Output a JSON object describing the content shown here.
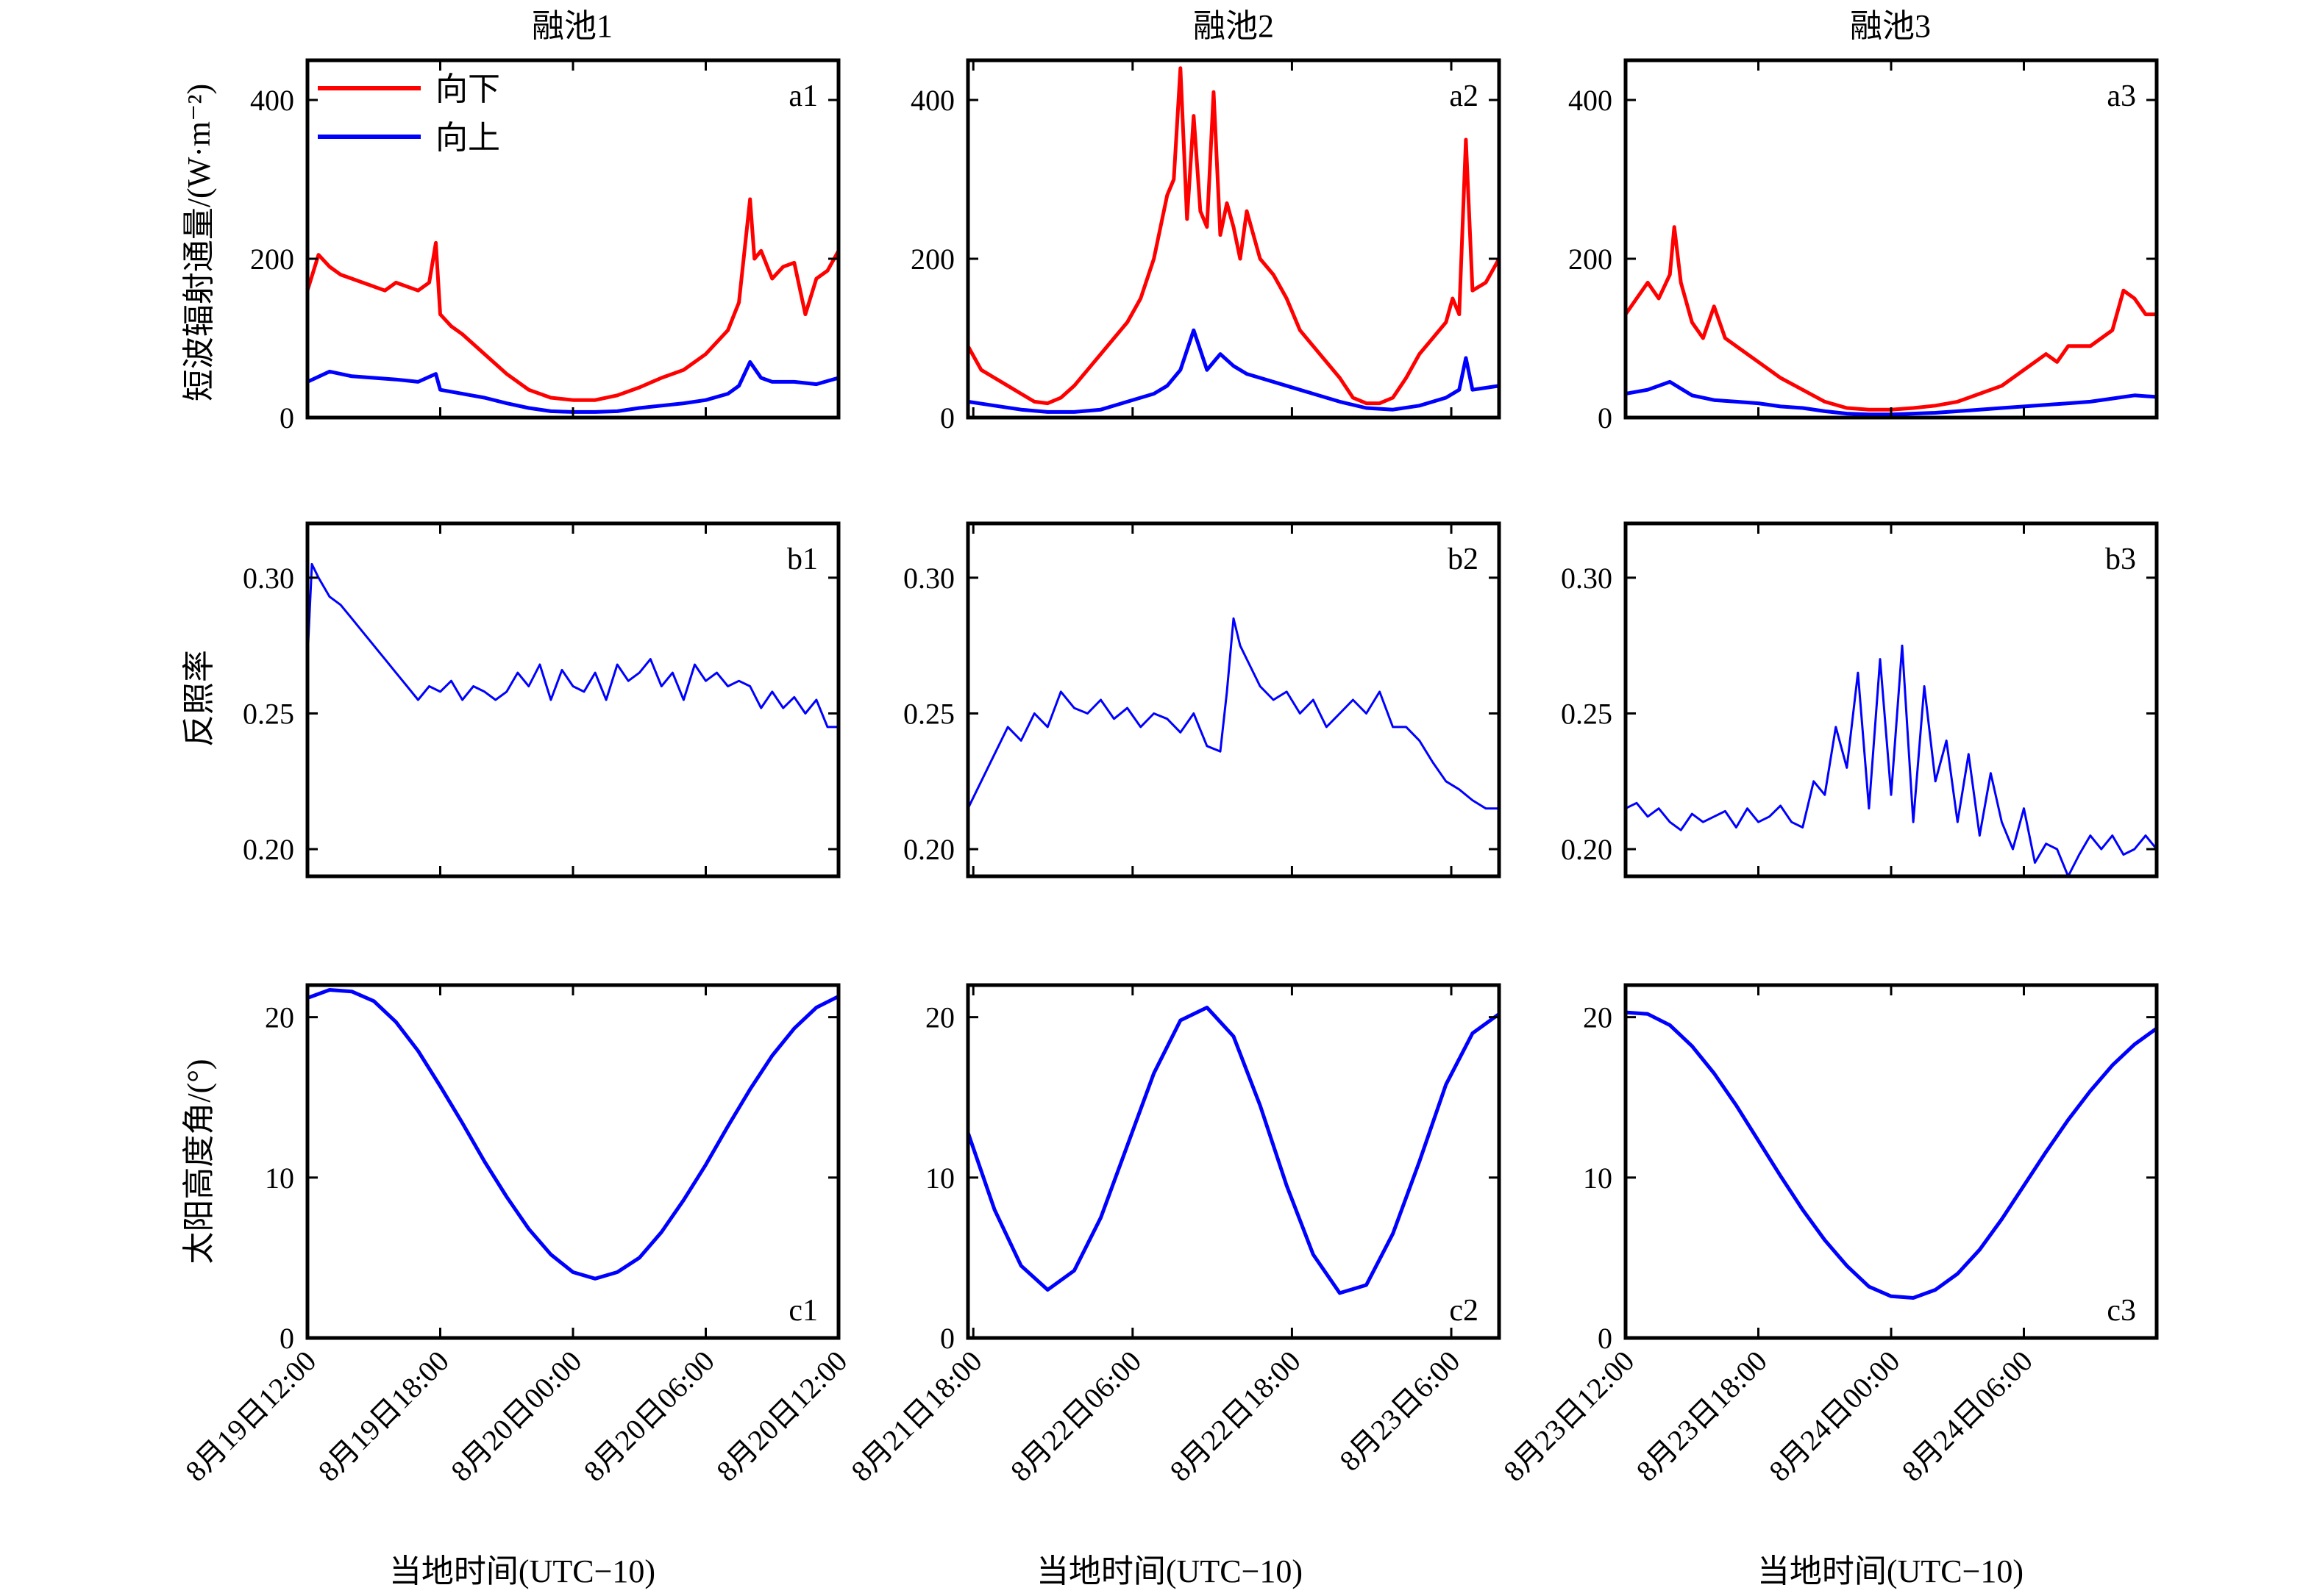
{
  "figure": {
    "xlabel": "当地时间(UTC−10)"
  },
  "columns": [
    {
      "title": "融池1",
      "xticks": [
        "8月19日12:00",
        "8月19日18:00",
        "8月20日00:00",
        "8月20日06:00",
        "8月20日12:00"
      ]
    },
    {
      "title": "融池2",
      "xticks": [
        "8月21日18:00",
        "8月22日06:00",
        "8月22日18:00",
        "8月23日6:00"
      ]
    },
    {
      "title": "融池3",
      "xticks": [
        "8月23日12:00",
        "8月23日18:00",
        "8月24日00:00",
        "8月24日06:00"
      ]
    }
  ],
  "rows": [
    {
      "ylabel": "短波辐射通量/(W·m⁻²)"
    },
    {
      "ylabel": "反照率"
    },
    {
      "ylabel": "太阳高度角/(°)"
    }
  ],
  "colors": {
    "down": "#ff0000",
    "up": "#0000ff",
    "axis": "#000000"
  },
  "legend": {
    "down": "向下",
    "up": "向上",
    "placement": "top-left"
  },
  "chart_data": [
    {
      "id": "a1",
      "type": "line",
      "panel_label": "a1",
      "column": 1,
      "x_unit": "hours since 8月19日12:00",
      "xlim": [
        0,
        24
      ],
      "ylim": [
        0,
        450
      ],
      "yticks": [
        0,
        200,
        400
      ],
      "series": [
        {
          "name": "向下",
          "color": "#ff0000",
          "x": [
            0,
            0.5,
            1,
            1.5,
            2,
            2.5,
            3,
            3.5,
            4,
            4.5,
            5,
            5.5,
            5.8,
            6,
            6.5,
            7,
            8,
            9,
            10,
            11,
            12,
            13,
            14,
            15,
            16,
            17,
            18,
            19,
            19.5,
            20,
            20.2,
            20.5,
            21,
            21.5,
            22,
            22.5,
            23,
            23.5,
            24
          ],
          "y": [
            160,
            205,
            190,
            180,
            175,
            170,
            165,
            160,
            170,
            165,
            160,
            170,
            220,
            130,
            115,
            105,
            80,
            55,
            35,
            25,
            22,
            22,
            28,
            38,
            50,
            60,
            80,
            110,
            145,
            275,
            200,
            210,
            175,
            190,
            195,
            130,
            175,
            185,
            210
          ]
        },
        {
          "name": "向上",
          "color": "#0000ff",
          "x": [
            0,
            1,
            2,
            3,
            4,
            5,
            5.8,
            6,
            7,
            8,
            9,
            10,
            11,
            12,
            13,
            14,
            15,
            16,
            17,
            18,
            19,
            19.5,
            20,
            20.5,
            21,
            22,
            23,
            24
          ],
          "y": [
            45,
            58,
            52,
            50,
            48,
            45,
            55,
            35,
            30,
            25,
            18,
            12,
            8,
            7,
            7,
            8,
            12,
            15,
            18,
            22,
            30,
            40,
            70,
            50,
            45,
            45,
            42,
            50
          ]
        }
      ]
    },
    {
      "id": "a2",
      "type": "line",
      "panel_label": "a2",
      "column": 2,
      "x_unit": "hours since 8月21日18:00",
      "xlim": [
        0,
        40
      ],
      "ylim": [
        0,
        450
      ],
      "yticks": [
        0,
        200,
        400
      ],
      "series": [
        {
          "name": "向下",
          "color": "#ff0000",
          "x": [
            0,
            1,
            2,
            3,
            4,
            5,
            6,
            7,
            8,
            9,
            10,
            11,
            12,
            13,
            14,
            15,
            15.5,
            16,
            16.5,
            17,
            17.5,
            18,
            18.5,
            19,
            19.5,
            20,
            20.5,
            21,
            22,
            23,
            24,
            25,
            26,
            27,
            28,
            29,
            30,
            31,
            32,
            33,
            34,
            35,
            36,
            36.5,
            37,
            37.5,
            38,
            39,
            40
          ],
          "y": [
            90,
            60,
            50,
            40,
            30,
            20,
            18,
            25,
            40,
            60,
            80,
            100,
            120,
            150,
            200,
            280,
            300,
            440,
            250,
            380,
            260,
            240,
            410,
            230,
            270,
            240,
            200,
            260,
            200,
            180,
            150,
            110,
            90,
            70,
            50,
            25,
            18,
            18,
            25,
            50,
            80,
            100,
            120,
            150,
            130,
            350,
            160,
            170,
            200
          ]
        },
        {
          "name": "向上",
          "color": "#0000ff",
          "x": [
            0,
            2,
            4,
            6,
            8,
            10,
            12,
            14,
            15,
            16,
            17,
            18,
            19,
            20,
            21,
            22,
            24,
            26,
            28,
            30,
            32,
            34,
            36,
            37,
            37.5,
            38,
            40
          ],
          "y": [
            20,
            15,
            10,
            7,
            7,
            10,
            20,
            30,
            40,
            60,
            110,
            60,
            80,
            65,
            55,
            50,
            40,
            30,
            20,
            12,
            10,
            15,
            25,
            35,
            75,
            35,
            40
          ]
        }
      ]
    },
    {
      "id": "a3",
      "type": "line",
      "panel_label": "a3",
      "column": 3,
      "x_unit": "hours since 8月23日12:00",
      "xlim": [
        0,
        24
      ],
      "ylim": [
        0,
        450
      ],
      "yticks": [
        0,
        200,
        400
      ],
      "series": [
        {
          "name": "向下",
          "color": "#ff0000",
          "x": [
            0,
            0.5,
            1,
            1.5,
            2,
            2.2,
            2.5,
            3,
            3.5,
            4,
            4.5,
            5,
            6,
            7,
            8,
            9,
            10,
            11,
            12,
            13,
            14,
            15,
            16,
            17,
            18,
            19,
            19.5,
            20,
            21,
            22,
            22.5,
            23,
            23.5,
            24
          ],
          "y": [
            130,
            150,
            170,
            150,
            180,
            240,
            170,
            120,
            100,
            140,
            100,
            90,
            70,
            50,
            35,
            20,
            12,
            10,
            10,
            12,
            15,
            20,
            30,
            40,
            60,
            80,
            70,
            90,
            90,
            110,
            160,
            150,
            130,
            130
          ]
        },
        {
          "name": "向上",
          "color": "#0000ff",
          "x": [
            0,
            1,
            2,
            3,
            4,
            5,
            6,
            7,
            8,
            9,
            10,
            11,
            12,
            13,
            14,
            15,
            16,
            17,
            18,
            19,
            20,
            21,
            22,
            23,
            24
          ],
          "y": [
            30,
            35,
            45,
            28,
            22,
            20,
            18,
            14,
            12,
            8,
            5,
            4,
            4,
            5,
            6,
            8,
            10,
            12,
            14,
            16,
            18,
            20,
            24,
            28,
            26
          ]
        }
      ]
    },
    {
      "id": "b1",
      "type": "line",
      "panel_label": "b1",
      "column": 1,
      "x_unit": "hours since 8月19日12:00",
      "xlim": [
        0,
        24
      ],
      "ylim": [
        0.19,
        0.32
      ],
      "yticks": [
        0.2,
        0.25,
        0.3
      ],
      "series": [
        {
          "color": "#0000ff",
          "x": [
            0,
            0.2,
            0.5,
            1,
            1.5,
            2,
            2.5,
            3,
            3.5,
            4,
            4.5,
            5,
            5.5,
            6,
            6.5,
            7,
            7.5,
            8,
            8.5,
            9,
            9.5,
            10,
            10.5,
            11,
            11.5,
            12,
            12.5,
            13,
            13.5,
            14,
            14.5,
            15,
            15.5,
            16,
            16.5,
            17,
            17.5,
            18,
            18.5,
            19,
            19.5,
            20,
            20.5,
            21,
            21.5,
            22,
            22.5,
            23,
            23.5,
            24
          ],
          "y": [
            0.27,
            0.305,
            0.3,
            0.293,
            0.29,
            0.285,
            0.28,
            0.275,
            0.27,
            0.265,
            0.26,
            0.255,
            0.26,
            0.258,
            0.262,
            0.255,
            0.26,
            0.258,
            0.255,
            0.258,
            0.265,
            0.26,
            0.268,
            0.255,
            0.266,
            0.26,
            0.258,
            0.265,
            0.255,
            0.268,
            0.262,
            0.265,
            0.27,
            0.26,
            0.265,
            0.255,
            0.268,
            0.262,
            0.265,
            0.26,
            0.262,
            0.26,
            0.252,
            0.258,
            0.252,
            0.256,
            0.25,
            0.255,
            0.245,
            0.245
          ]
        }
      ]
    },
    {
      "id": "b2",
      "type": "line",
      "panel_label": "b2",
      "column": 2,
      "x_unit": "hours since 8月21日18:00",
      "xlim": [
        0,
        40
      ],
      "ylim": [
        0.19,
        0.32
      ],
      "yticks": [
        0.2,
        0.25,
        0.3
      ],
      "series": [
        {
          "color": "#0000ff",
          "x": [
            0,
            1,
            2,
            3,
            4,
            5,
            6,
            7,
            8,
            9,
            10,
            11,
            12,
            13,
            14,
            15,
            16,
            17,
            18,
            19,
            19.5,
            20,
            20.5,
            21,
            22,
            23,
            24,
            25,
            26,
            27,
            28,
            29,
            30,
            31,
            32,
            33,
            34,
            35,
            36,
            37,
            38,
            39,
            40
          ],
          "y": [
            0.215,
            0.225,
            0.235,
            0.245,
            0.24,
            0.25,
            0.245,
            0.258,
            0.252,
            0.25,
            0.255,
            0.248,
            0.252,
            0.245,
            0.25,
            0.248,
            0.243,
            0.25,
            0.238,
            0.236,
            0.258,
            0.285,
            0.275,
            0.27,
            0.26,
            0.255,
            0.258,
            0.25,
            0.255,
            0.245,
            0.25,
            0.255,
            0.25,
            0.258,
            0.245,
            0.245,
            0.24,
            0.232,
            0.225,
            0.222,
            0.218,
            0.215,
            0.215
          ]
        }
      ]
    },
    {
      "id": "b3",
      "type": "line",
      "panel_label": "b3",
      "column": 3,
      "x_unit": "hours since 8月23日12:00",
      "xlim": [
        0,
        24
      ],
      "ylim": [
        0.19,
        0.32
      ],
      "yticks": [
        0.2,
        0.25,
        0.3
      ],
      "series": [
        {
          "color": "#0000ff",
          "x": [
            0,
            0.5,
            1,
            1.5,
            2,
            2.5,
            3,
            3.5,
            4,
            4.5,
            5,
            5.5,
            6,
            6.5,
            7,
            7.5,
            8,
            8.5,
            9,
            9.5,
            10,
            10.5,
            11,
            11.5,
            12,
            12.5,
            13,
            13.5,
            14,
            14.5,
            15,
            15.5,
            16,
            16.5,
            17,
            17.5,
            18,
            18.5,
            19,
            19.5,
            20,
            20.5,
            21,
            21.5,
            22,
            22.5,
            23,
            23.5,
            24
          ],
          "y": [
            0.215,
            0.217,
            0.212,
            0.215,
            0.21,
            0.207,
            0.213,
            0.21,
            0.212,
            0.214,
            0.208,
            0.215,
            0.21,
            0.212,
            0.216,
            0.21,
            0.208,
            0.225,
            0.22,
            0.245,
            0.23,
            0.265,
            0.215,
            0.27,
            0.22,
            0.275,
            0.21,
            0.26,
            0.225,
            0.24,
            0.21,
            0.235,
            0.205,
            0.228,
            0.21,
            0.2,
            0.215,
            0.195,
            0.202,
            0.2,
            0.19,
            0.198,
            0.205,
            0.2,
            0.205,
            0.198,
            0.2,
            0.205,
            0.2
          ]
        }
      ]
    },
    {
      "id": "c1",
      "type": "line",
      "panel_label": "c1",
      "column": 1,
      "x_unit": "hours since 8月19日12:00",
      "xlim": [
        0,
        24
      ],
      "ylim": [
        0,
        22
      ],
      "yticks": [
        0,
        10,
        20
      ],
      "series": [
        {
          "color": "#0000ff",
          "x": [
            0,
            1,
            2,
            3,
            4,
            5,
            6,
            7,
            8,
            9,
            10,
            11,
            12,
            13,
            14,
            15,
            16,
            17,
            18,
            19,
            20,
            21,
            22,
            23,
            24
          ],
          "y": [
            21.2,
            21.7,
            21.6,
            21.0,
            19.7,
            17.9,
            15.7,
            13.4,
            11.0,
            8.8,
            6.8,
            5.2,
            4.1,
            3.7,
            4.1,
            5.0,
            6.6,
            8.6,
            10.8,
            13.2,
            15.5,
            17.6,
            19.3,
            20.6,
            21.3
          ]
        }
      ]
    },
    {
      "id": "c2",
      "type": "line",
      "panel_label": "c2",
      "column": 2,
      "x_unit": "hours since 8月21日18:00",
      "xlim": [
        0,
        40
      ],
      "ylim": [
        0,
        22
      ],
      "yticks": [
        0,
        10,
        20
      ],
      "series": [
        {
          "color": "#0000ff",
          "x": [
            0,
            2,
            4,
            6,
            8,
            10,
            12,
            14,
            16,
            18,
            20,
            22,
            24,
            26,
            28,
            30,
            32,
            34,
            36,
            38,
            40
          ],
          "y": [
            12.8,
            8.0,
            4.5,
            3.0,
            4.2,
            7.5,
            12.0,
            16.5,
            19.8,
            20.6,
            18.8,
            14.5,
            9.5,
            5.2,
            2.8,
            3.3,
            6.5,
            11.0,
            15.8,
            19.0,
            20.2
          ]
        }
      ]
    },
    {
      "id": "c3",
      "type": "line",
      "panel_label": "c3",
      "column": 3,
      "x_unit": "hours since 8月23日12:00",
      "xlim": [
        0,
        24
      ],
      "ylim": [
        0,
        22
      ],
      "yticks": [
        0,
        10,
        20
      ],
      "series": [
        {
          "color": "#0000ff",
          "x": [
            0,
            1,
            2,
            3,
            4,
            5,
            6,
            7,
            8,
            9,
            10,
            11,
            12,
            13,
            14,
            15,
            16,
            17,
            18,
            19,
            20,
            21,
            22,
            23,
            24
          ],
          "y": [
            20.3,
            20.2,
            19.5,
            18.2,
            16.5,
            14.5,
            12.3,
            10.1,
            8.0,
            6.1,
            4.5,
            3.2,
            2.6,
            2.5,
            3.0,
            4.0,
            5.5,
            7.4,
            9.5,
            11.6,
            13.6,
            15.4,
            17.0,
            18.3,
            19.3
          ]
        }
      ]
    }
  ]
}
